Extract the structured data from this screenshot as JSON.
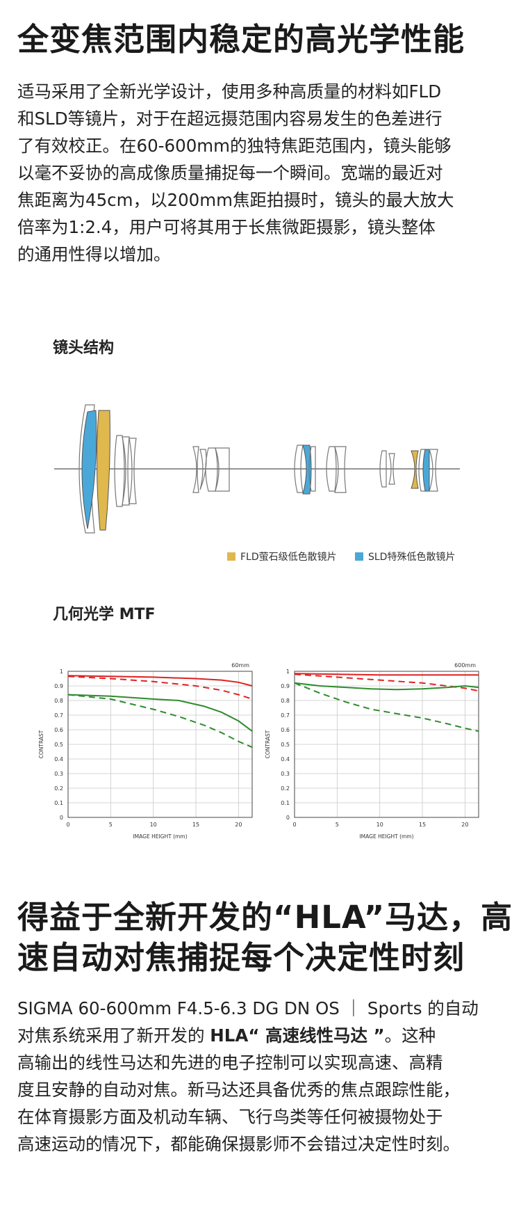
{
  "section1": {
    "title": "全变焦范围内稳定的高光学性能",
    "lines": [
      "适马采用了全新光学设计，使用多种高质量的材料如FLD",
      "和SLD等镜片，对于在超远摄范围内容易发生的色差进行",
      "了有效校正。在60-600mm的独特焦距范围内，镜头能够",
      "以毫不妥协的高成像质量捕捉每一个瞬间。宽端的最近对",
      "焦距离为45cm，以200mm焦距拍摄时，镜头的最大放大",
      "倍率为1:2.4，用户可将其用于长焦微距摄影，镜头整体",
      "的通用性得以增加。"
    ]
  },
  "lens_section": {
    "title": "镜头结构",
    "legend_fld": "FLD萤石级低色散镜片",
    "legend_sld": "SLD特殊低色散镜片",
    "colors": {
      "fld": "#dfb84e",
      "sld": "#4aa8d8"
    }
  },
  "mtf_section": {
    "title": "几何光学 MTF"
  },
  "chart_data": [
    {
      "type": "line",
      "title": "60mm",
      "xlabel": "IMAGE HEIGHT (mm)",
      "ylabel": "CONTRAST",
      "xlim": [
        0,
        21.6
      ],
      "ylim": [
        0,
        1
      ],
      "xticks": [
        0,
        5,
        10,
        15,
        20
      ],
      "yticks": [
        0,
        0.1,
        0.2,
        0.3,
        0.4,
        0.5,
        0.6,
        0.7,
        0.8,
        0.9,
        1
      ],
      "grid": true,
      "series": [
        {
          "color": "#e02020",
          "dashed": false,
          "x": [
            0,
            5,
            10,
            15,
            18,
            20,
            21.6
          ],
          "y": [
            0.97,
            0.965,
            0.96,
            0.95,
            0.94,
            0.925,
            0.9
          ]
        },
        {
          "color": "#e02020",
          "dashed": true,
          "x": [
            0,
            5,
            10,
            15,
            18,
            20,
            21.6
          ],
          "y": [
            0.965,
            0.95,
            0.93,
            0.9,
            0.87,
            0.84,
            0.81
          ]
        },
        {
          "color": "#2e8b2e",
          "dashed": false,
          "x": [
            0,
            5,
            10,
            13,
            16,
            18,
            20,
            21.6
          ],
          "y": [
            0.84,
            0.83,
            0.81,
            0.8,
            0.76,
            0.72,
            0.66,
            0.59
          ]
        },
        {
          "color": "#2e8b2e",
          "dashed": true,
          "x": [
            0,
            5,
            10,
            13,
            16,
            18,
            20,
            21.6
          ],
          "y": [
            0.84,
            0.81,
            0.74,
            0.69,
            0.63,
            0.58,
            0.52,
            0.48
          ]
        }
      ]
    },
    {
      "type": "line",
      "title": "600mm",
      "xlabel": "IMAGE HEIGHT (mm)",
      "ylabel": "CONTRAST",
      "xlim": [
        0,
        21.6
      ],
      "ylim": [
        0,
        1
      ],
      "xticks": [
        0,
        5,
        10,
        15,
        20
      ],
      "yticks": [
        0,
        0.1,
        0.2,
        0.3,
        0.4,
        0.5,
        0.6,
        0.7,
        0.8,
        0.9,
        1
      ],
      "grid": true,
      "series": [
        {
          "color": "#e02020",
          "dashed": false,
          "x": [
            0,
            5,
            10,
            15,
            20,
            21.6
          ],
          "y": [
            0.985,
            0.98,
            0.975,
            0.975,
            0.975,
            0.975
          ]
        },
        {
          "color": "#e02020",
          "dashed": true,
          "x": [
            0,
            5,
            10,
            15,
            20,
            21.6
          ],
          "y": [
            0.98,
            0.96,
            0.94,
            0.92,
            0.885,
            0.865
          ]
        },
        {
          "color": "#2e8b2e",
          "dashed": false,
          "x": [
            0,
            3,
            6,
            9,
            12,
            15,
            18,
            20,
            21.6
          ],
          "y": [
            0.92,
            0.9,
            0.89,
            0.88,
            0.875,
            0.88,
            0.89,
            0.9,
            0.89
          ]
        },
        {
          "color": "#2e8b2e",
          "dashed": true,
          "x": [
            0,
            3,
            6,
            9,
            12,
            15,
            18,
            20,
            21.6
          ],
          "y": [
            0.92,
            0.85,
            0.79,
            0.74,
            0.71,
            0.68,
            0.64,
            0.61,
            0.59
          ]
        }
      ]
    }
  ],
  "section2": {
    "title_line1": "得益于全新开发的“HLA”马达，高",
    "title_line2": "速自动对焦捕捉每个决定性时刻",
    "p_line1": "SIGMA 60-600mm F4.5-6.3 DG DN OS ｜ Sports 的自动",
    "p_line2_a": "对焦系统采用了新开发的 ",
    "p_line2_b": "HLA“ 高速线性马达 ”",
    "p_line2_c": "。这种",
    "p_lines_rest": [
      "高输出的线性马达和先进的电子控制可以实现高速、高精",
      "度且安静的自动对焦。新马达还具备优秀的焦点跟踪性能，",
      "在体育摄影方面及机动车辆、飞行鸟类等任何被摄物处于",
      "高速运动的情况下，都能确保摄影师不会错过决定性时刻。"
    ]
  }
}
